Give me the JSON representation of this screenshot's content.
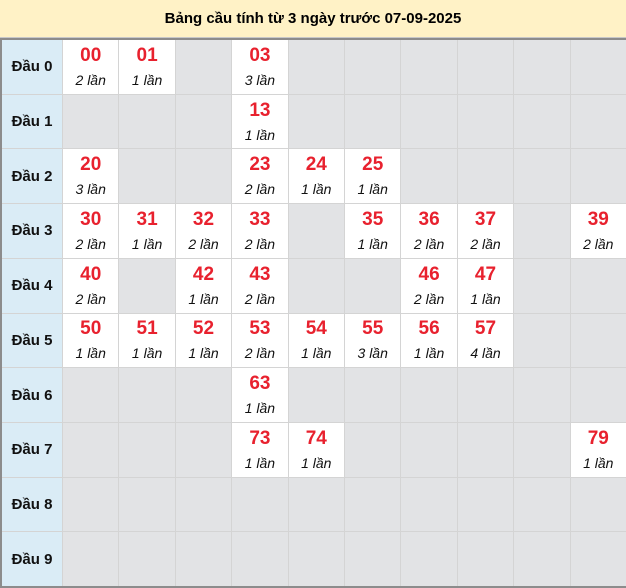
{
  "title": "Bảng cầu tính từ 3 ngày trước 07-09-2025",
  "colors": {
    "number": "#e8212e",
    "header_bg": "#fff2c6",
    "row_label_bg": "#daecf6",
    "empty_cell": "#e2e3e5"
  },
  "rows": [
    {
      "label": "Đầu 0",
      "cells": [
        {
          "num": "00",
          "count": "2 lần"
        },
        {
          "num": "01",
          "count": "1 lần"
        },
        null,
        {
          "num": "03",
          "count": "3 lần"
        },
        null,
        null,
        null,
        null,
        null,
        null
      ]
    },
    {
      "label": "Đầu 1",
      "cells": [
        null,
        null,
        null,
        {
          "num": "13",
          "count": "1 lần"
        },
        null,
        null,
        null,
        null,
        null,
        null
      ]
    },
    {
      "label": "Đầu 2",
      "cells": [
        {
          "num": "20",
          "count": "3 lần"
        },
        null,
        null,
        {
          "num": "23",
          "count": "2 lần"
        },
        {
          "num": "24",
          "count": "1 lần"
        },
        {
          "num": "25",
          "count": "1 lần"
        },
        null,
        null,
        null,
        null
      ]
    },
    {
      "label": "Đầu 3",
      "cells": [
        {
          "num": "30",
          "count": "2 lần"
        },
        {
          "num": "31",
          "count": "1 lần"
        },
        {
          "num": "32",
          "count": "2 lần"
        },
        {
          "num": "33",
          "count": "2 lần"
        },
        null,
        {
          "num": "35",
          "count": "1 lần"
        },
        {
          "num": "36",
          "count": "2 lần"
        },
        {
          "num": "37",
          "count": "2 lần"
        },
        null,
        {
          "num": "39",
          "count": "2 lần"
        }
      ]
    },
    {
      "label": "Đầu 4",
      "cells": [
        {
          "num": "40",
          "count": "2 lần"
        },
        null,
        {
          "num": "42",
          "count": "1 lần"
        },
        {
          "num": "43",
          "count": "2 lần"
        },
        null,
        null,
        {
          "num": "46",
          "count": "2 lần"
        },
        {
          "num": "47",
          "count": "1 lần"
        },
        null,
        null
      ]
    },
    {
      "label": "Đầu 5",
      "cells": [
        {
          "num": "50",
          "count": "1 lần"
        },
        {
          "num": "51",
          "count": "1 lần"
        },
        {
          "num": "52",
          "count": "1 lần"
        },
        {
          "num": "53",
          "count": "2 lần"
        },
        {
          "num": "54",
          "count": "1 lần"
        },
        {
          "num": "55",
          "count": "3 lần"
        },
        {
          "num": "56",
          "count": "1 lần"
        },
        {
          "num": "57",
          "count": "4 lần"
        },
        null,
        null
      ]
    },
    {
      "label": "Đầu 6",
      "cells": [
        null,
        null,
        null,
        {
          "num": "63",
          "count": "1 lần"
        },
        null,
        null,
        null,
        null,
        null,
        null
      ]
    },
    {
      "label": "Đầu 7",
      "cells": [
        null,
        null,
        null,
        {
          "num": "73",
          "count": "1 lần"
        },
        {
          "num": "74",
          "count": "1 lần"
        },
        null,
        null,
        null,
        null,
        {
          "num": "79",
          "count": "1 lần"
        }
      ]
    },
    {
      "label": "Đầu 8",
      "cells": [
        null,
        null,
        null,
        null,
        null,
        null,
        null,
        null,
        null,
        null
      ]
    },
    {
      "label": "Đầu 9",
      "cells": [
        null,
        null,
        null,
        null,
        null,
        null,
        null,
        null,
        null,
        null
      ]
    }
  ]
}
